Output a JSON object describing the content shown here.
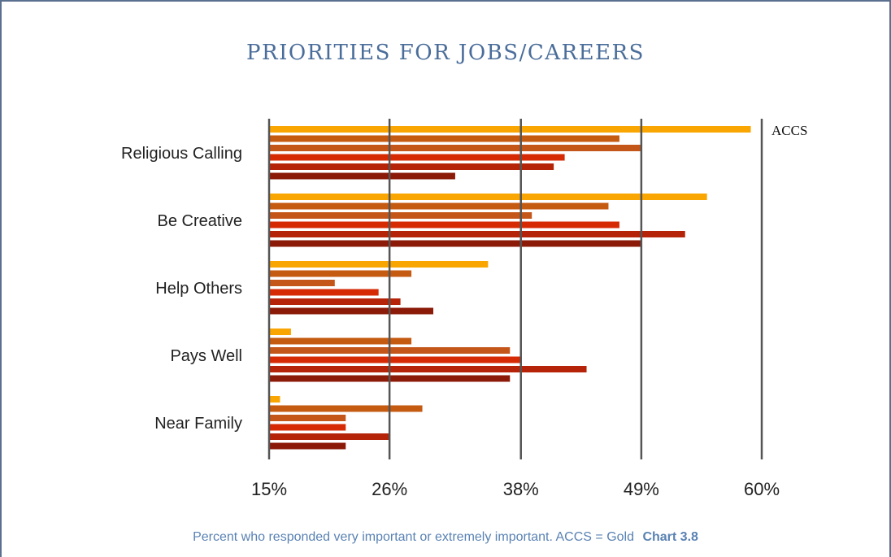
{
  "chart_data": {
    "type": "bar",
    "orientation": "horizontal",
    "title": "PRIORITIES FOR JOBS/CAREERS",
    "caption": "Percent who responded very important or extremely important.  ACCS = Gold",
    "chart_ref": "Chart 3.8",
    "categories": [
      "Religious Calling",
      "Be Creative",
      "Help Others",
      "Pays Well",
      "Near Family"
    ],
    "x_ticks": [
      15,
      26,
      38,
      49,
      60
    ],
    "x_tick_labels": [
      "15%",
      "26%",
      "38%",
      "49%",
      "60%"
    ],
    "xlim": [
      15,
      60
    ],
    "grid": true,
    "legend": "top-right",
    "series": [
      {
        "name": "ACCS",
        "color": "#f9a602",
        "values": [
          59,
          55,
          35,
          17,
          16
        ]
      },
      {
        "color": "#c55a11",
        "values": [
          47,
          46,
          28,
          28,
          29
        ]
      },
      {
        "color": "#c4561a",
        "values": [
          49,
          39,
          21,
          37,
          22
        ]
      },
      {
        "color": "#d62a05",
        "values": [
          42,
          47,
          25,
          38,
          22
        ]
      },
      {
        "color": "#b52408",
        "values": [
          41,
          53,
          27,
          44,
          26
        ]
      },
      {
        "color": "#8b1a08",
        "values": [
          32,
          49,
          30,
          37,
          22
        ]
      }
    ]
  }
}
